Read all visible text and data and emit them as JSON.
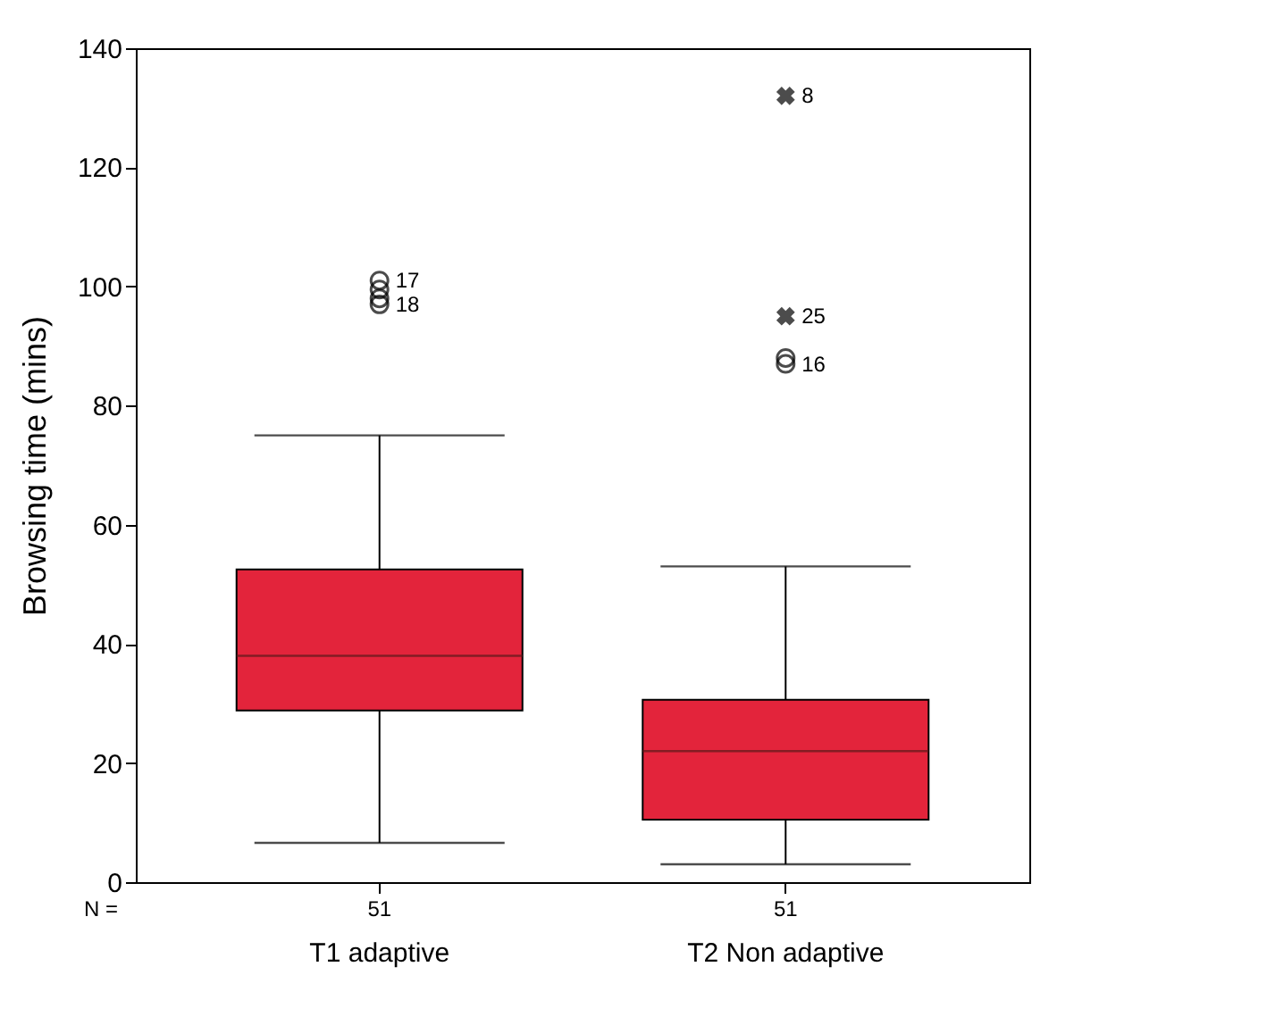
{
  "chart_data": {
    "type": "box",
    "ylabel": "Browsing time (mins)",
    "categories": [
      "T1 adaptive",
      "T2 Non adaptive"
    ],
    "ylim": [
      0,
      140
    ],
    "yticks": [
      0,
      20,
      40,
      60,
      80,
      100,
      120,
      140
    ],
    "grid": false,
    "series": [
      {
        "color": "#e3243b",
        "marker": "circle",
        "boxes": [
          {
            "low": 6.6,
            "q1": 28.8,
            "median": 38,
            "q3": 52.5,
            "high": 75,
            "outliers": [
              101,
              99.5,
              98,
              97
            ]
          },
          {
            "low": 3,
            "q1": 10.5,
            "median": 22,
            "q3": 30.6,
            "high": 53,
            "outliers": [
              88,
              87
            ]
          }
        ]
      },
      {
        "type": "scatter",
        "marker": "cross",
        "color": "#000000",
        "x": [
          "T2 Non adaptive",
          "T2 Non adaptive"
        ],
        "values": [
          132,
          95
        ]
      }
    ],
    "annotations": [
      "N =",
      "51",
      "51",
      "17",
      "18",
      "16",
      "8",
      "25"
    ]
  }
}
